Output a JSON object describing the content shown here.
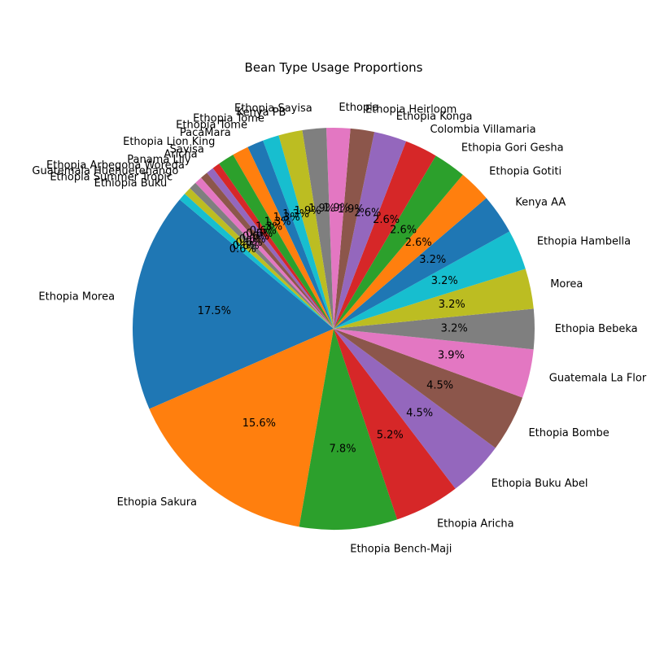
{
  "chart_data": {
    "type": "pie",
    "title": "Bean Type Usage Proportions",
    "start_angle": 140,
    "direction": "counterclockwise",
    "legend": "none",
    "slices": [
      {
        "label": "Ethopia Morea",
        "value": 17.5,
        "color": "#1f77b4"
      },
      {
        "label": "Ethopia Sakura",
        "value": 15.6,
        "color": "#ff7f0e"
      },
      {
        "label": "Ethopia Bench-Maji",
        "value": 7.8,
        "color": "#2ca02c"
      },
      {
        "label": "Ethopia Aricha",
        "value": 5.2,
        "color": "#d62728"
      },
      {
        "label": "Ethopia Buku Abel",
        "value": 4.5,
        "color": "#9467bd"
      },
      {
        "label": "Ethopia Bombe",
        "value": 4.5,
        "color": "#8c564b"
      },
      {
        "label": "Guatemala La Flor",
        "value": 3.9,
        "color": "#e377c2"
      },
      {
        "label": "Ethopia Bebeka",
        "value": 3.2,
        "color": "#7f7f7f"
      },
      {
        "label": "Morea",
        "value": 3.2,
        "color": "#bcbd22"
      },
      {
        "label": "Ethopia Hambella",
        "value": 3.2,
        "color": "#17becf"
      },
      {
        "label": "Kenya AA",
        "value": 3.2,
        "color": "#1f77b4"
      },
      {
        "label": "Ethopia Gotiti",
        "value": 2.6,
        "color": "#ff7f0e"
      },
      {
        "label": "Ethopia Gori Gesha",
        "value": 2.6,
        "color": "#2ca02c"
      },
      {
        "label": "Colombia Villamaria",
        "value": 2.6,
        "color": "#d62728"
      },
      {
        "label": "Ethopia Konga",
        "value": 2.6,
        "color": "#9467bd"
      },
      {
        "label": "Ethopia Heirloom",
        "value": 1.9,
        "color": "#8c564b"
      },
      {
        "label": "Ethopia",
        "value": 1.9,
        "color": "#e377c2"
      },
      {
        "label": "Ethopia Sayisa",
        "value": 1.9,
        "color": "#7f7f7f"
      },
      {
        "label": "Kenya PB",
        "value": 1.9,
        "color": "#bcbd22"
      },
      {
        "label": "Ethopia Tome",
        "value": 1.3,
        "color": "#17becf"
      },
      {
        "label": "Ethopia Tome",
        "value": 1.3,
        "color": "#1f77b4"
      },
      {
        "label": "PacaMara",
        "value": 1.3,
        "color": "#ff7f0e"
      },
      {
        "label": "Ethopia Lion King",
        "value": 1.3,
        "color": "#2ca02c"
      },
      {
        "label": "Sayisa",
        "value": 0.6,
        "color": "#d62728"
      },
      {
        "label": "Aricha",
        "value": 0.6,
        "color": "#9467bd"
      },
      {
        "label": "Panama Lily",
        "value": 0.6,
        "color": "#8c564b"
      },
      {
        "label": "Ethopia Arbegona Woreda",
        "value": 0.6,
        "color": "#e377c2"
      },
      {
        "label": "Guatemala Huehuetenango",
        "value": 0.6,
        "color": "#7f7f7f"
      },
      {
        "label": "Ethopia Summer Tropic",
        "value": 0.6,
        "color": "#bcbd22"
      },
      {
        "label": "Ethiopia Buku",
        "value": 0.6,
        "color": "#17becf"
      }
    ]
  }
}
